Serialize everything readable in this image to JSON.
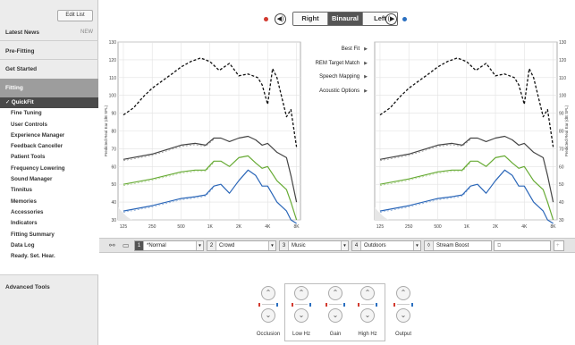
{
  "sidebar": {
    "edit_list": "Edit List",
    "latest_news": "Latest News",
    "new_badge": "NEW",
    "pre_fitting": "Pre-Fitting",
    "get_started": "Get Started",
    "fitting": "Fitting",
    "fitting_items": [
      "✓ QuickFit",
      "Fine Tuning",
      "User Controls",
      "Experience Manager",
      "Feedback Canceller",
      "Patient Tools",
      "Frequency Lowering",
      "Sound Manager",
      "Tinnitus",
      "Memories",
      "Accessories",
      "Indicators",
      "Fitting Summary",
      "Data Log",
      "Ready. Set. Hear."
    ],
    "advanced_tools": "Advanced Tools"
  },
  "topbar": {
    "right_label": "Right",
    "binaural_label": "Binaural",
    "left_label": "Left",
    "right_color": "#d23a2f",
    "left_color": "#2a6fc0"
  },
  "center_menu": [
    "Best Fit",
    "REM Target Match",
    "Speech Mapping",
    "Acoustic Options"
  ],
  "chart_data": [
    {
      "type": "line",
      "ylabel": "Predicted Real Ear (dB SPL)",
      "x_ticks": [
        "125",
        "250",
        "500",
        "1K",
        "2K",
        "4K",
        "8K"
      ],
      "y_ticks": [
        30,
        40,
        50,
        60,
        70,
        80,
        90,
        100,
        110,
        120,
        130
      ],
      "ylim": [
        30,
        130
      ],
      "series": [
        {
          "color": "#111111",
          "style": "dashed",
          "x": [
            125,
            160,
            200,
            250,
            315,
            400,
            500,
            630,
            800,
            1000,
            1250,
            1600,
            2000,
            2500,
            3150,
            3500,
            4000,
            4500,
            5000,
            6300,
            7000,
            8000
          ],
          "y": [
            89,
            93,
            99,
            104,
            108,
            112,
            116,
            119,
            121,
            119,
            114,
            118,
            111,
            112,
            110,
            106,
            95,
            115,
            110,
            88,
            92,
            71
          ]
        },
        {
          "color": "#444444",
          "style": "solid",
          "x": [
            125,
            250,
            500,
            700,
            900,
            1100,
            1300,
            1600,
            2000,
            2500,
            3000,
            3500,
            4000,
            5000,
            6300,
            7000,
            8000
          ],
          "y": [
            64,
            67,
            72,
            73,
            72,
            76,
            76,
            74,
            76,
            77,
            75,
            72,
            73,
            68,
            65,
            55,
            40
          ]
        },
        {
          "color": "#66aa33",
          "style": "solid",
          "x": [
            125,
            250,
            500,
            700,
            900,
            1100,
            1300,
            1600,
            2000,
            2500,
            3000,
            3500,
            4000,
            5000,
            6300,
            7000,
            8000
          ],
          "y": [
            50,
            53,
            57,
            58,
            58,
            63,
            63,
            60,
            65,
            66,
            62,
            59,
            60,
            52,
            47,
            40,
            30
          ]
        },
        {
          "color": "#2a66b8",
          "style": "solid",
          "x": [
            125,
            250,
            500,
            700,
            900,
            1100,
            1300,
            1600,
            2000,
            2500,
            3000,
            3500,
            4000,
            5000,
            6300,
            7000,
            8000
          ],
          "y": [
            35,
            38,
            42,
            43,
            44,
            49,
            50,
            45,
            52,
            58,
            55,
            49,
            49,
            40,
            35,
            30,
            28
          ]
        }
      ]
    },
    {
      "type": "line",
      "ylabel": "Predicted Real Ear (dB SPL)",
      "x_ticks": [
        "125",
        "250",
        "500",
        "1K",
        "2K",
        "4K",
        "8K"
      ],
      "y_ticks": [
        30,
        40,
        50,
        60,
        70,
        80,
        90,
        100,
        110,
        120,
        130
      ],
      "ylim": [
        30,
        130
      ],
      "series": [
        {
          "color": "#111111",
          "style": "dashed",
          "x": [
            125,
            160,
            200,
            250,
            315,
            400,
            500,
            630,
            800,
            1000,
            1250,
            1600,
            2000,
            2500,
            3150,
            3500,
            4000,
            4500,
            5000,
            6300,
            7000,
            8000
          ],
          "y": [
            89,
            93,
            99,
            104,
            108,
            112,
            116,
            119,
            121,
            119,
            114,
            118,
            111,
            112,
            110,
            106,
            95,
            115,
            110,
            88,
            92,
            71
          ]
        },
        {
          "color": "#444444",
          "style": "solid",
          "x": [
            125,
            250,
            500,
            700,
            900,
            1100,
            1300,
            1600,
            2000,
            2500,
            3000,
            3500,
            4000,
            5000,
            6300,
            7000,
            8000
          ],
          "y": [
            64,
            67,
            72,
            73,
            72,
            76,
            76,
            74,
            76,
            77,
            75,
            72,
            73,
            68,
            65,
            55,
            40
          ]
        },
        {
          "color": "#66aa33",
          "style": "solid",
          "x": [
            125,
            250,
            500,
            700,
            900,
            1100,
            1300,
            1600,
            2000,
            2500,
            3000,
            3500,
            4000,
            5000,
            6300,
            7000,
            8000
          ],
          "y": [
            50,
            53,
            57,
            58,
            58,
            63,
            63,
            60,
            65,
            66,
            62,
            59,
            60,
            52,
            47,
            40,
            30
          ]
        },
        {
          "color": "#2a66b8",
          "style": "solid",
          "x": [
            125,
            250,
            500,
            700,
            900,
            1100,
            1300,
            1600,
            2000,
            2500,
            3000,
            3500,
            4000,
            5000,
            6300,
            7000,
            8000
          ],
          "y": [
            35,
            38,
            42,
            43,
            44,
            49,
            50,
            45,
            52,
            58,
            55,
            49,
            49,
            40,
            35,
            30,
            28
          ]
        }
      ]
    }
  ],
  "programs": [
    {
      "num": "1",
      "name": "*Normal"
    },
    {
      "num": "2",
      "name": "Crowd"
    },
    {
      "num": "3",
      "name": "Music"
    },
    {
      "num": "4",
      "name": "Outdoors"
    },
    {
      "num": "",
      "name": "Stream Boost"
    }
  ],
  "fine_tuning": [
    "Occlusion",
    "Low Hz",
    "Gain",
    "High Hz",
    "Output"
  ]
}
